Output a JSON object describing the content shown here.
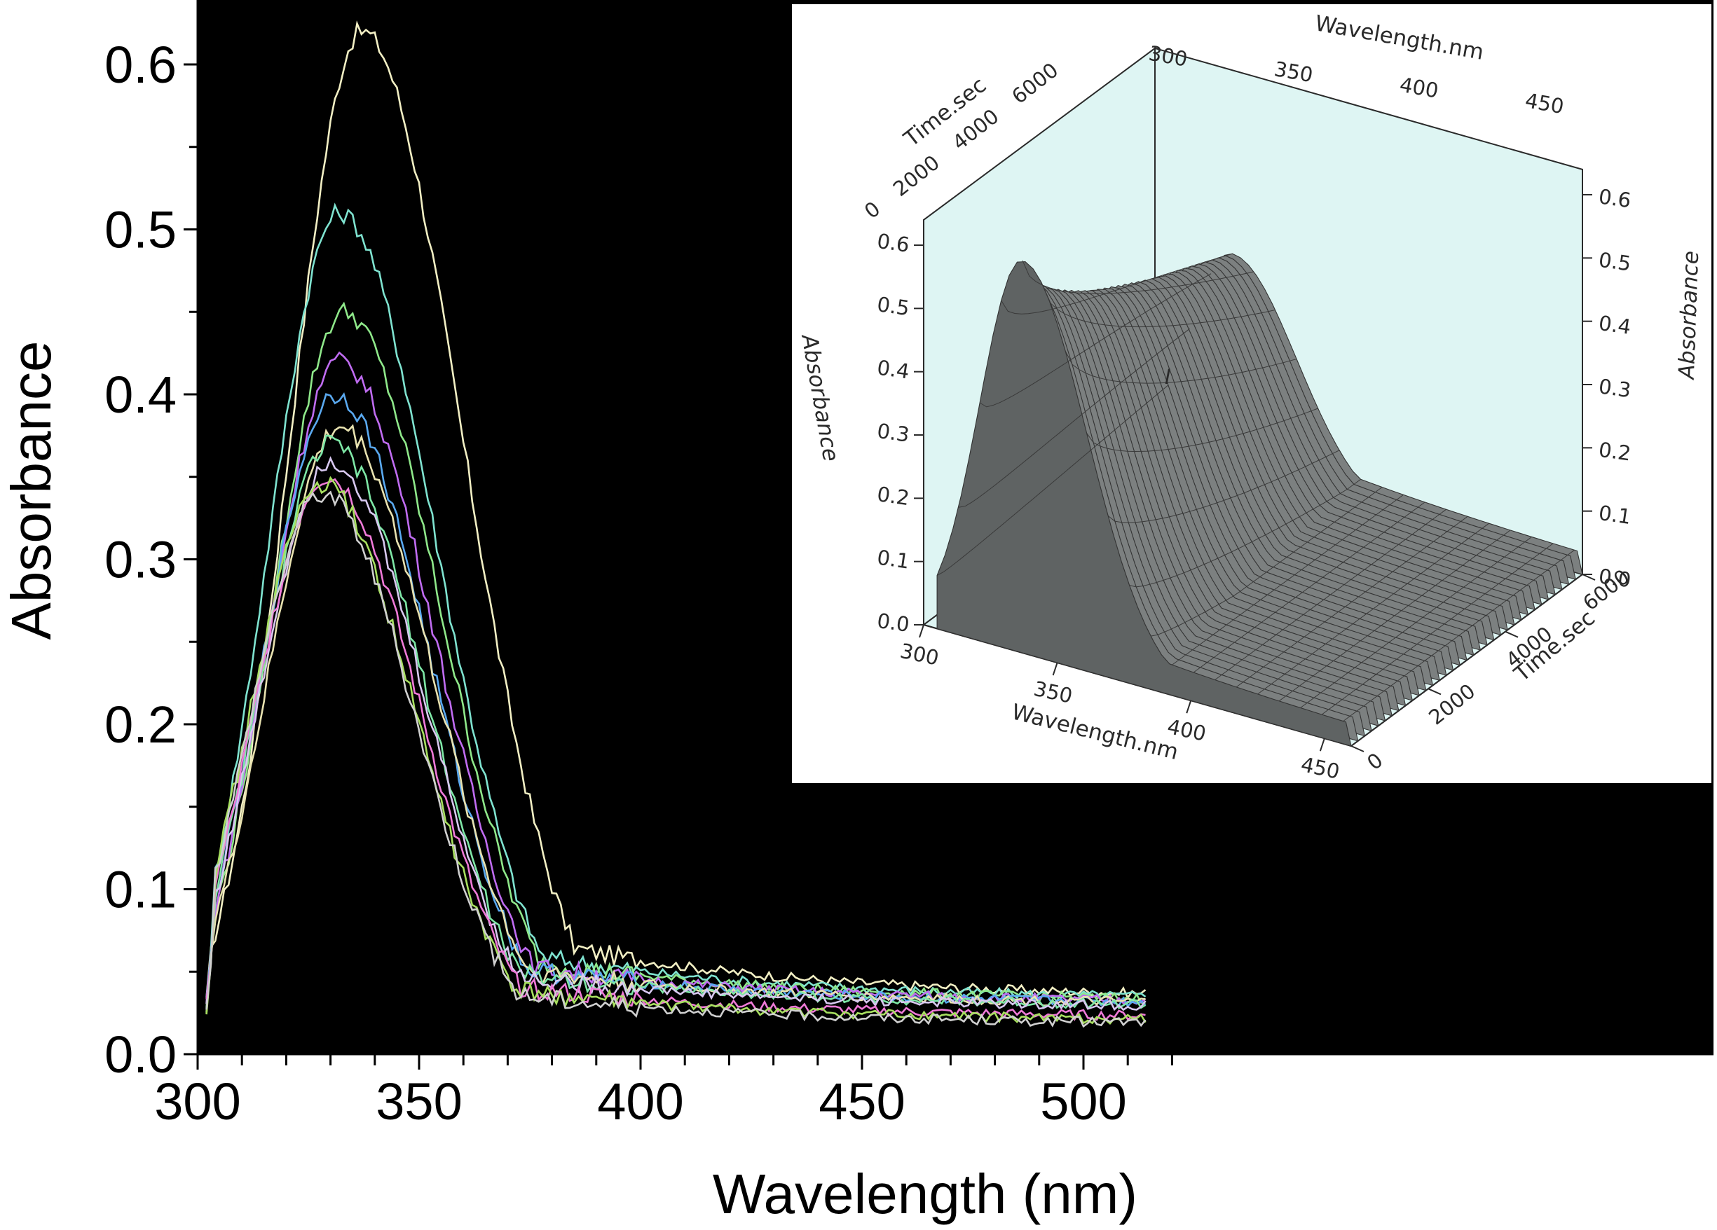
{
  "chart_data": [
    {
      "type": "line",
      "title": "",
      "xlabel": "Wavelength (nm)",
      "ylabel": "Absorbance",
      "xlim": [
        300,
        520
      ],
      "ylim": [
        0.0,
        0.63
      ],
      "x_ticks": [
        "300",
        "350",
        "400",
        "450",
        "500"
      ],
      "y_ticks": [
        "0.0",
        "0.1",
        "0.2",
        "0.3",
        "0.4",
        "0.5",
        "0.6"
      ],
      "background": "#000000",
      "legend": "none",
      "series": [
        {
          "color": "#f2efc4",
          "peak_x": 337,
          "peak_y": 0.62,
          "tail_y": 0.034
        },
        {
          "color": "#7fe3d0",
          "peak_x": 332,
          "peak_y": 0.51,
          "tail_y": 0.033
        },
        {
          "color": "#8fe88a",
          "peak_x": 333,
          "peak_y": 0.45,
          "tail_y": 0.032
        },
        {
          "color": "#c06cf2",
          "peak_x": 332,
          "peak_y": 0.42,
          "tail_y": 0.031
        },
        {
          "color": "#5aa9f0",
          "peak_x": 331,
          "peak_y": 0.4,
          "tail_y": 0.03
        },
        {
          "color": "#e8e2b0",
          "peak_x": 332,
          "peak_y": 0.38,
          "tail_y": 0.03
        },
        {
          "color": "#7ee7a6",
          "peak_x": 330,
          "peak_y": 0.37,
          "tail_y": 0.029
        },
        {
          "color": "#d8c8f0",
          "peak_x": 330,
          "peak_y": 0.36,
          "tail_y": 0.028
        },
        {
          "color": "#f07ad8",
          "peak_x": 329,
          "peak_y": 0.35,
          "tail_y": 0.022
        },
        {
          "color": "#a8e060",
          "peak_x": 328,
          "peak_y": 0.345,
          "tail_y": 0.02
        },
        {
          "color": "#d0d0d0",
          "peak_x": 328,
          "peak_y": 0.34,
          "tail_y": 0.018
        }
      ]
    },
    {
      "type": "surface",
      "title": "",
      "wavelength_axis_label": "Wavelength.nm",
      "time_axis_label": "Time.sec",
      "absorbance_axis_label": "Absorbance",
      "wavelength_ticks": [
        "300",
        "350",
        "400",
        "450"
      ],
      "time_ticks": [
        "0",
        "2000",
        "4000",
        "6000"
      ],
      "absorbance_ticks": [
        "0.0",
        "0.1",
        "0.2",
        "0.3",
        "0.4",
        "0.5",
        "0.6"
      ],
      "marker_label": "I",
      "background": "#def5f3",
      "surface_color": "#6e7272"
    }
  ]
}
